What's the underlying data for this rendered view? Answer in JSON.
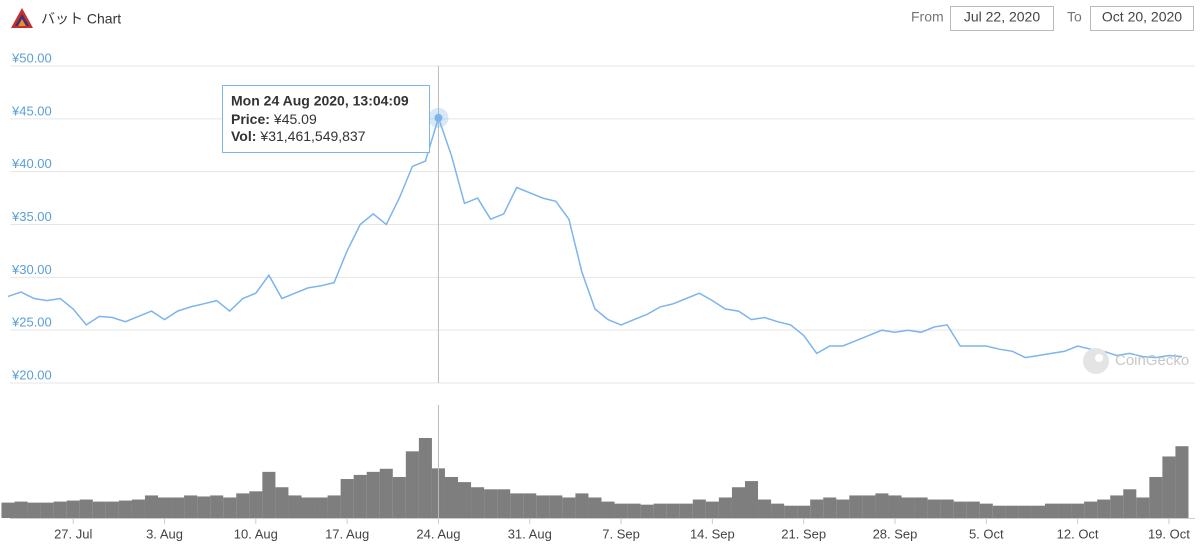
{
  "chart_data": {
    "type": "line",
    "title": "バット Chart",
    "from_label": "From",
    "from_date": "Jul 22, 2020",
    "to_label": "To",
    "to_date": "Oct 20, 2020",
    "watermark": "CoinGecko",
    "x": [
      "2020-07-22",
      "2020-07-23",
      "2020-07-24",
      "2020-07-25",
      "2020-07-26",
      "2020-07-27",
      "2020-07-28",
      "2020-07-29",
      "2020-07-30",
      "2020-07-31",
      "2020-08-01",
      "2020-08-02",
      "2020-08-03",
      "2020-08-04",
      "2020-08-05",
      "2020-08-06",
      "2020-08-07",
      "2020-08-08",
      "2020-08-09",
      "2020-08-10",
      "2020-08-11",
      "2020-08-12",
      "2020-08-13",
      "2020-08-14",
      "2020-08-15",
      "2020-08-16",
      "2020-08-17",
      "2020-08-18",
      "2020-08-19",
      "2020-08-20",
      "2020-08-21",
      "2020-08-22",
      "2020-08-23",
      "2020-08-24",
      "2020-08-25",
      "2020-08-26",
      "2020-08-27",
      "2020-08-28",
      "2020-08-29",
      "2020-08-30",
      "2020-08-31",
      "2020-09-01",
      "2020-09-02",
      "2020-09-03",
      "2020-09-04",
      "2020-09-05",
      "2020-09-06",
      "2020-09-07",
      "2020-09-08",
      "2020-09-09",
      "2020-09-10",
      "2020-09-11",
      "2020-09-12",
      "2020-09-13",
      "2020-09-14",
      "2020-09-15",
      "2020-09-16",
      "2020-09-17",
      "2020-09-18",
      "2020-09-19",
      "2020-09-20",
      "2020-09-21",
      "2020-09-22",
      "2020-09-23",
      "2020-09-24",
      "2020-09-25",
      "2020-09-26",
      "2020-09-27",
      "2020-09-28",
      "2020-09-29",
      "2020-09-30",
      "2020-10-01",
      "2020-10-02",
      "2020-10-03",
      "2020-10-04",
      "2020-10-05",
      "2020-10-06",
      "2020-10-07",
      "2020-10-08",
      "2020-10-09",
      "2020-10-10",
      "2020-10-11",
      "2020-10-12",
      "2020-10-13",
      "2020-10-14",
      "2020-10-15",
      "2020-10-16",
      "2020-10-17",
      "2020-10-18",
      "2020-10-19",
      "2020-10-20"
    ],
    "series": [
      {
        "color": "#7cb5ec",
        "values": [
          28.2,
          28.6,
          28.0,
          27.8,
          28.0,
          27.0,
          25.5,
          26.3,
          26.2,
          25.8,
          26.3,
          26.8,
          26.0,
          26.8,
          27.2,
          27.5,
          27.8,
          26.8,
          28.0,
          28.5,
          30.2,
          28.0,
          28.5,
          29.0,
          29.2,
          29.5,
          32.5,
          35.0,
          36.0,
          35.0,
          37.5,
          40.5,
          41.0,
          45.09,
          41.5,
          37.0,
          37.5,
          35.5,
          36.0,
          38.5,
          38.0,
          37.5,
          37.2,
          35.5,
          30.5,
          27.0,
          26.0,
          25.5,
          26.0,
          26.5,
          27.2,
          27.5,
          28.0,
          28.5,
          27.8,
          27.0,
          26.8,
          26.0,
          26.2,
          25.8,
          25.5,
          24.5,
          22.8,
          23.5,
          23.5,
          24.0,
          24.5,
          25.0,
          24.8,
          25.0,
          24.8,
          25.3,
          25.5,
          23.5,
          23.5,
          23.5,
          23.2,
          23.0,
          22.4,
          22.6,
          22.8,
          23.0,
          23.5,
          23.2,
          23.0,
          22.6,
          22.8,
          22.5,
          22.4,
          22.6,
          22.5
        ]
      }
    ],
    "volume": {
      "color": "#5e5e5e",
      "values": [
        9750000000,
        10400000000,
        9750000000,
        9750000000,
        10400000000,
        11050000000,
        11700000000,
        10400000000,
        10400000000,
        11050000000,
        11700000000,
        14300000000,
        13000000000,
        13000000000,
        14300000000,
        13650000000,
        14300000000,
        13000000000,
        15600000000,
        16900000000,
        29250000000,
        19500000000,
        14300000000,
        13000000000,
        13000000000,
        14300000000,
        24700000000,
        27300000000,
        29250000000,
        31200000000,
        26000000000,
        42250000000,
        50700000000,
        31461549837,
        26000000000,
        22750000000,
        19500000000,
        18200000000,
        18200000000,
        15600000000,
        15600000000,
        14300000000,
        14300000000,
        13000000000,
        15600000000,
        13000000000,
        10400000000,
        9100000000,
        9100000000,
        8450000000,
        9100000000,
        9100000000,
        9100000000,
        11700000000,
        10400000000,
        13000000000,
        19500000000,
        23400000000,
        11700000000,
        9100000000,
        7800000000,
        7800000000,
        11700000000,
        13000000000,
        11700000000,
        14300000000,
        14300000000,
        15600000000,
        14300000000,
        13000000000,
        13000000000,
        11700000000,
        11700000000,
        10400000000,
        10400000000,
        9100000000,
        7800000000,
        7800000000,
        7800000000,
        7800000000,
        9100000000,
        9100000000,
        9100000000,
        10400000000,
        11700000000,
        14300000000,
        18200000000,
        13000000000,
        26000000000,
        39000000000,
        45500000000
      ]
    },
    "xlim": [
      "2020-07-22",
      "2020-10-21"
    ],
    "xticks": [
      {
        "value": "2020-07-27",
        "label": "27. Jul"
      },
      {
        "value": "2020-08-03",
        "label": "3. Aug"
      },
      {
        "value": "2020-08-10",
        "label": "10. Aug"
      },
      {
        "value": "2020-08-17",
        "label": "17. Aug"
      },
      {
        "value": "2020-08-24",
        "label": "24. Aug"
      },
      {
        "value": "2020-08-31",
        "label": "31. Aug"
      },
      {
        "value": "2020-09-07",
        "label": "7. Sep"
      },
      {
        "value": "2020-09-14",
        "label": "14. Sep"
      },
      {
        "value": "2020-09-21",
        "label": "21. Sep"
      },
      {
        "value": "2020-09-28",
        "label": "28. Sep"
      },
      {
        "value": "2020-10-05",
        "label": "5. Oct"
      },
      {
        "value": "2020-10-12",
        "label": "12. Oct"
      },
      {
        "value": "2020-10-19",
        "label": "19. Oct"
      }
    ],
    "ylim": [
      20,
      50
    ],
    "yticks": [
      {
        "value": 20,
        "label": "¥20.00"
      },
      {
        "value": 25,
        "label": "¥25.00"
      },
      {
        "value": 30,
        "label": "¥30.00"
      },
      {
        "value": 35,
        "label": "¥35.00"
      },
      {
        "value": 40,
        "label": "¥40.00"
      },
      {
        "value": 45,
        "label": "¥45.00"
      },
      {
        "value": 50,
        "label": "¥50.00"
      }
    ],
    "grid": true,
    "tooltip": {
      "index": 33,
      "date": "Mon 24 Aug 2020, 13:04:09",
      "price_label": "Price:",
      "price": "¥45.09",
      "vol_label": "Vol:",
      "volume": "¥31,461,549,837"
    }
  }
}
